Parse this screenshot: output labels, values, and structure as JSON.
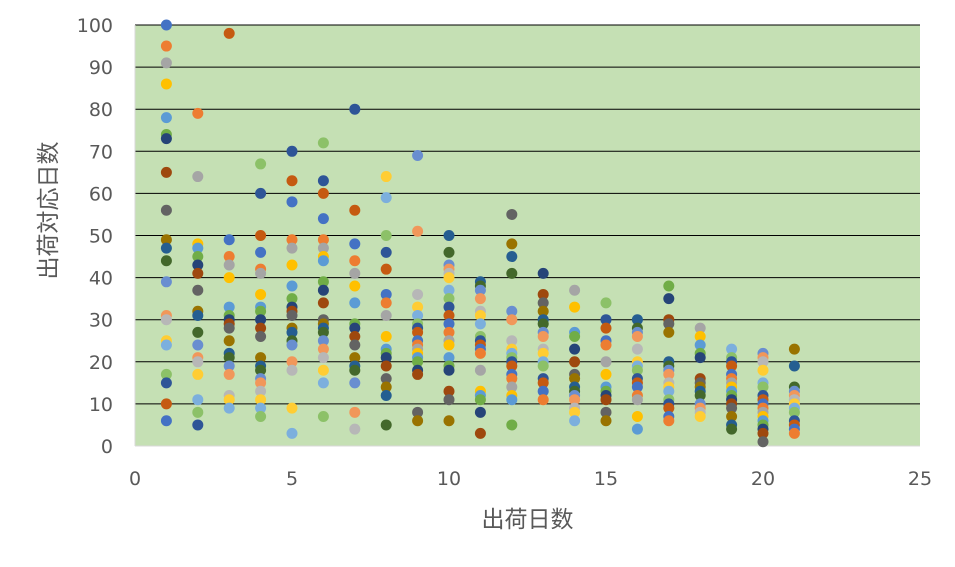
{
  "chart_data": {
    "type": "scatter",
    "title": "",
    "xlabel": "出荷日数",
    "ylabel": "出荷対応日数",
    "xlim": [
      0,
      25
    ],
    "ylim": [
      0,
      100
    ],
    "xticks": [
      0,
      5,
      10,
      15,
      20,
      25
    ],
    "yticks": [
      0,
      10,
      20,
      30,
      40,
      50,
      60,
      70,
      80,
      90,
      100
    ],
    "grid": "horizontal",
    "legend": "none",
    "plot_background": "#c5e0b4",
    "grid_color": "#000000",
    "palette": [
      "#4472c4",
      "#ed7d31",
      "#a5a5a5",
      "#ffc000",
      "#5b9bd5",
      "#70ad47",
      "#264478",
      "#9e480e",
      "#636363",
      "#997300",
      "#255e91",
      "#43682b",
      "#698ed0",
      "#f1975a",
      "#b7b7b7",
      "#ffcd33",
      "#7cafdd",
      "#8cc168",
      "#2e5597",
      "#c55a11"
    ],
    "points": [
      [
        1,
        100
      ],
      [
        1,
        95
      ],
      [
        1,
        91
      ],
      [
        1,
        86
      ],
      [
        1,
        78
      ],
      [
        1,
        74
      ],
      [
        1,
        73
      ],
      [
        1,
        65
      ],
      [
        1,
        56
      ],
      [
        1,
        49
      ],
      [
        1,
        47
      ],
      [
        1,
        44
      ],
      [
        1,
        39
      ],
      [
        1,
        31
      ],
      [
        1,
        30
      ],
      [
        1,
        25
      ],
      [
        1,
        24
      ],
      [
        1,
        17
      ],
      [
        1,
        15
      ],
      [
        1,
        10
      ],
      [
        1,
        6
      ],
      [
        2,
        79
      ],
      [
        2,
        64
      ],
      [
        2,
        48
      ],
      [
        2,
        47
      ],
      [
        2,
        45
      ],
      [
        2,
        43
      ],
      [
        2,
        41
      ],
      [
        2,
        37
      ],
      [
        2,
        32
      ],
      [
        2,
        31
      ],
      [
        2,
        27
      ],
      [
        2,
        24
      ],
      [
        2,
        21
      ],
      [
        2,
        20
      ],
      [
        2,
        17
      ],
      [
        2,
        11
      ],
      [
        2,
        8
      ],
      [
        2,
        5
      ],
      [
        3,
        98
      ],
      [
        3,
        49
      ],
      [
        3,
        45
      ],
      [
        3,
        43
      ],
      [
        3,
        40
      ],
      [
        3,
        33
      ],
      [
        3,
        31
      ],
      [
        3,
        30
      ],
      [
        3,
        29
      ],
      [
        3,
        28
      ],
      [
        3,
        25
      ],
      [
        3,
        22
      ],
      [
        3,
        21
      ],
      [
        3,
        19
      ],
      [
        3,
        17
      ],
      [
        3,
        12
      ],
      [
        3,
        11
      ],
      [
        3,
        9
      ],
      [
        4,
        67
      ],
      [
        4,
        60
      ],
      [
        4,
        50
      ],
      [
        4,
        46
      ],
      [
        4,
        42
      ],
      [
        4,
        41
      ],
      [
        4,
        36
      ],
      [
        4,
        33
      ],
      [
        4,
        32
      ],
      [
        4,
        30
      ],
      [
        4,
        28
      ],
      [
        4,
        26
      ],
      [
        4,
        21
      ],
      [
        4,
        19
      ],
      [
        4,
        18
      ],
      [
        4,
        16
      ],
      [
        4,
        15
      ],
      [
        4,
        13
      ],
      [
        4,
        11
      ],
      [
        4,
        9
      ],
      [
        4,
        7
      ],
      [
        5,
        70
      ],
      [
        5,
        63
      ],
      [
        5,
        58
      ],
      [
        5,
        49
      ],
      [
        5,
        47
      ],
      [
        5,
        43
      ],
      [
        5,
        38
      ],
      [
        5,
        35
      ],
      [
        5,
        33
      ],
      [
        5,
        32
      ],
      [
        5,
        31
      ],
      [
        5,
        28
      ],
      [
        5,
        27
      ],
      [
        5,
        25
      ],
      [
        5,
        24
      ],
      [
        5,
        20
      ],
      [
        5,
        18
      ],
      [
        5,
        9
      ],
      [
        5,
        3
      ],
      [
        6,
        72
      ],
      [
        6,
        63
      ],
      [
        6,
        60
      ],
      [
        6,
        54
      ],
      [
        6,
        49
      ],
      [
        6,
        47
      ],
      [
        6,
        45
      ],
      [
        6,
        44
      ],
      [
        6,
        39
      ],
      [
        6,
        37
      ],
      [
        6,
        34
      ],
      [
        6,
        30
      ],
      [
        6,
        29
      ],
      [
        6,
        28
      ],
      [
        6,
        27
      ],
      [
        6,
        25
      ],
      [
        6,
        23
      ],
      [
        6,
        21
      ],
      [
        6,
        18
      ],
      [
        6,
        15
      ],
      [
        6,
        7
      ],
      [
        7,
        80
      ],
      [
        7,
        56
      ],
      [
        7,
        48
      ],
      [
        7,
        44
      ],
      [
        7,
        41
      ],
      [
        7,
        38
      ],
      [
        7,
        34
      ],
      [
        7,
        29
      ],
      [
        7,
        28
      ],
      [
        7,
        26
      ],
      [
        7,
        24
      ],
      [
        7,
        21
      ],
      [
        7,
        19
      ],
      [
        7,
        18
      ],
      [
        7,
        15
      ],
      [
        7,
        8
      ],
      [
        7,
        4
      ],
      [
        8,
        64
      ],
      [
        8,
        59
      ],
      [
        8,
        50
      ],
      [
        8,
        46
      ],
      [
        8,
        42
      ],
      [
        8,
        36
      ],
      [
        8,
        34
      ],
      [
        8,
        31
      ],
      [
        8,
        26
      ],
      [
        8,
        23
      ],
      [
        8,
        22
      ],
      [
        8,
        21
      ],
      [
        8,
        19
      ],
      [
        8,
        16
      ],
      [
        8,
        14
      ],
      [
        8,
        12
      ],
      [
        8,
        5
      ],
      [
        9,
        69
      ],
      [
        9,
        51
      ],
      [
        9,
        36
      ],
      [
        9,
        33
      ],
      [
        9,
        31
      ],
      [
        9,
        29
      ],
      [
        9,
        28
      ],
      [
        9,
        27
      ],
      [
        9,
        25
      ],
      [
        9,
        24
      ],
      [
        9,
        23
      ],
      [
        9,
        22
      ],
      [
        9,
        21
      ],
      [
        9,
        20
      ],
      [
        9,
        18
      ],
      [
        9,
        17
      ],
      [
        9,
        8
      ],
      [
        9,
        6
      ],
      [
        10,
        50
      ],
      [
        10,
        46
      ],
      [
        10,
        43
      ],
      [
        10,
        42
      ],
      [
        10,
        41
      ],
      [
        10,
        40
      ],
      [
        10,
        37
      ],
      [
        10,
        35
      ],
      [
        10,
        33
      ],
      [
        10,
        31
      ],
      [
        10,
        29
      ],
      [
        10,
        27
      ],
      [
        10,
        25
      ],
      [
        10,
        24
      ],
      [
        10,
        21
      ],
      [
        10,
        19
      ],
      [
        10,
        18
      ],
      [
        10,
        13
      ],
      [
        10,
        11
      ],
      [
        10,
        6
      ],
      [
        11,
        39
      ],
      [
        11,
        38
      ],
      [
        11,
        37
      ],
      [
        11,
        35
      ],
      [
        11,
        32
      ],
      [
        11,
        31
      ],
      [
        11,
        29
      ],
      [
        11,
        26
      ],
      [
        11,
        25
      ],
      [
        11,
        24
      ],
      [
        11,
        23
      ],
      [
        11,
        22
      ],
      [
        11,
        18
      ],
      [
        11,
        13
      ],
      [
        11,
        12
      ],
      [
        11,
        11
      ],
      [
        11,
        8
      ],
      [
        11,
        3
      ],
      [
        12,
        55
      ],
      [
        12,
        48
      ],
      [
        12,
        45
      ],
      [
        12,
        41
      ],
      [
        12,
        32
      ],
      [
        12,
        30
      ],
      [
        12,
        25
      ],
      [
        12,
        23
      ],
      [
        12,
        22
      ],
      [
        12,
        21
      ],
      [
        12,
        20
      ],
      [
        12,
        19
      ],
      [
        12,
        17
      ],
      [
        12,
        16
      ],
      [
        12,
        14
      ],
      [
        12,
        12
      ],
      [
        12,
        11
      ],
      [
        12,
        5
      ],
      [
        13,
        41
      ],
      [
        13,
        36
      ],
      [
        13,
        34
      ],
      [
        13,
        32
      ],
      [
        13,
        30
      ],
      [
        13,
        29
      ],
      [
        13,
        27
      ],
      [
        13,
        26
      ],
      [
        13,
        23
      ],
      [
        13,
        22
      ],
      [
        13,
        20
      ],
      [
        13,
        19
      ],
      [
        13,
        16
      ],
      [
        13,
        15
      ],
      [
        13,
        13
      ],
      [
        13,
        11
      ],
      [
        14,
        37
      ],
      [
        14,
        33
      ],
      [
        14,
        27
      ],
      [
        14,
        26
      ],
      [
        14,
        23
      ],
      [
        14,
        20
      ],
      [
        14,
        17
      ],
      [
        14,
        16
      ],
      [
        14,
        14
      ],
      [
        14,
        13
      ],
      [
        14,
        12
      ],
      [
        14,
        11
      ],
      [
        14,
        9
      ],
      [
        14,
        8
      ],
      [
        14,
        6
      ],
      [
        15,
        34
      ],
      [
        15,
        30
      ],
      [
        15,
        28
      ],
      [
        15,
        25
      ],
      [
        15,
        24
      ],
      [
        15,
        20
      ],
      [
        15,
        17
      ],
      [
        15,
        14
      ],
      [
        15,
        13
      ],
      [
        15,
        12
      ],
      [
        15,
        11
      ],
      [
        15,
        8
      ],
      [
        15,
        6
      ],
      [
        16,
        30
      ],
      [
        16,
        28
      ],
      [
        16,
        27
      ],
      [
        16,
        26
      ],
      [
        16,
        23
      ],
      [
        16,
        20
      ],
      [
        16,
        19
      ],
      [
        16,
        18
      ],
      [
        16,
        16
      ],
      [
        16,
        15
      ],
      [
        16,
        14
      ],
      [
        16,
        12
      ],
      [
        16,
        11
      ],
      [
        16,
        7
      ],
      [
        16,
        4
      ],
      [
        17,
        38
      ],
      [
        17,
        35
      ],
      [
        17,
        30
      ],
      [
        17,
        29
      ],
      [
        17,
        27
      ],
      [
        17,
        20
      ],
      [
        17,
        19
      ],
      [
        17,
        18
      ],
      [
        17,
        17
      ],
      [
        17,
        15
      ],
      [
        17,
        14
      ],
      [
        17,
        13
      ],
      [
        17,
        11
      ],
      [
        17,
        10
      ],
      [
        17,
        9
      ],
      [
        17,
        7
      ],
      [
        17,
        6
      ],
      [
        18,
        28
      ],
      [
        18,
        26
      ],
      [
        18,
        24
      ],
      [
        18,
        22
      ],
      [
        18,
        21
      ],
      [
        18,
        16
      ],
      [
        18,
        15
      ],
      [
        18,
        14
      ],
      [
        18,
        13
      ],
      [
        18,
        12
      ],
      [
        18,
        10
      ],
      [
        18,
        9
      ],
      [
        18,
        8
      ],
      [
        18,
        7
      ],
      [
        19,
        23
      ],
      [
        19,
        21
      ],
      [
        19,
        20
      ],
      [
        19,
        19
      ],
      [
        19,
        17
      ],
      [
        19,
        16
      ],
      [
        19,
        15
      ],
      [
        19,
        14
      ],
      [
        19,
        13
      ],
      [
        19,
        12
      ],
      [
        19,
        11
      ],
      [
        19,
        10
      ],
      [
        19,
        9
      ],
      [
        19,
        7
      ],
      [
        19,
        5
      ],
      [
        19,
        4
      ],
      [
        20,
        22
      ],
      [
        20,
        21
      ],
      [
        20,
        20
      ],
      [
        20,
        18
      ],
      [
        20,
        15
      ],
      [
        20,
        14
      ],
      [
        20,
        12
      ],
      [
        20,
        11
      ],
      [
        20,
        10
      ],
      [
        20,
        9
      ],
      [
        20,
        8
      ],
      [
        20,
        7
      ],
      [
        20,
        6
      ],
      [
        20,
        5
      ],
      [
        20,
        4
      ],
      [
        20,
        3
      ],
      [
        20,
        1
      ],
      [
        21,
        23
      ],
      [
        21,
        19
      ],
      [
        21,
        14
      ],
      [
        21,
        13
      ],
      [
        21,
        12
      ],
      [
        21,
        11
      ],
      [
        21,
        10
      ],
      [
        21,
        9
      ],
      [
        21,
        8
      ],
      [
        21,
        6
      ],
      [
        21,
        5
      ],
      [
        21,
        4
      ],
      [
        21,
        3
      ]
    ]
  }
}
